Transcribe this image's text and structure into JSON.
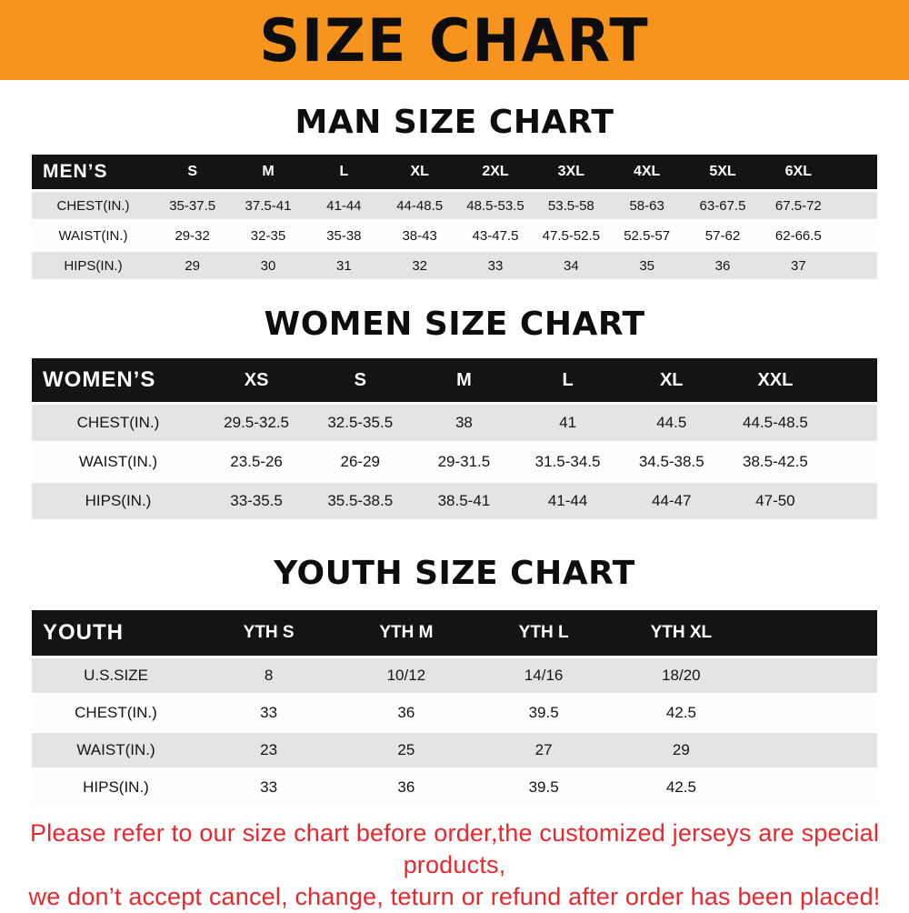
{
  "banner": {
    "title": "SIZE CHART"
  },
  "sections": {
    "men": {
      "heading": "MAN SIZE CHART",
      "table": {
        "header": [
          "MEN’S",
          "S",
          "M",
          "L",
          "XL",
          "2XL",
          "3XL",
          "4XL",
          "5XL",
          "6XL"
        ],
        "rows": [
          [
            "CHEST(IN.)",
            "35-37.5",
            "37.5-41",
            "41-44",
            "44-48.5",
            "48.5-53.5",
            "53.5-58",
            "58-63",
            "63-67.5",
            "67.5-72"
          ],
          [
            "WAIST(IN.)",
            "29-32",
            "32-35",
            "35-38",
            "38-43",
            "43-47.5",
            "47.5-52.5",
            "52.5-57",
            "57-62",
            "62-66.5"
          ],
          [
            "HIPS(IN.)",
            "29",
            "30",
            "31",
            "32",
            "33",
            "34",
            "35",
            "36",
            "37"
          ]
        ]
      }
    },
    "women": {
      "heading": "WOMEN SIZE CHART",
      "table": {
        "header": [
          "WOMEN’S",
          "XS",
          "S",
          "M",
          "L",
          "XL",
          "XXL"
        ],
        "rows": [
          [
            "CHEST(IN.)",
            "29.5-32.5",
            "32.5-35.5",
            "38",
            "41",
            "44.5",
            "44.5-48.5"
          ],
          [
            "WAIST(IN.)",
            "23.5-26",
            "26-29",
            "29-31.5",
            "31.5-34.5",
            "34.5-38.5",
            "38.5-42.5"
          ],
          [
            "HIPS(IN.)",
            "33-35.5",
            "35.5-38.5",
            "38.5-41",
            "41-44",
            "44-47",
            "47-50"
          ]
        ]
      }
    },
    "youth": {
      "heading": "YOUTH SIZE CHART",
      "table": {
        "header": [
          "YOUTH",
          "YTH S",
          "YTH M",
          "YTH L",
          "YTH XL"
        ],
        "rows": [
          [
            "U.S.SIZE",
            "8",
            "10/12",
            "14/16",
            "18/20"
          ],
          [
            "CHEST(IN.)",
            "33",
            "36",
            "39.5",
            "42.5"
          ],
          [
            "WAIST(IN.)",
            "23",
            "25",
            "27",
            "29"
          ],
          [
            "HIPS(IN.)",
            "33",
            "36",
            "39.5",
            "42.5"
          ]
        ]
      }
    }
  },
  "footer": {
    "line1": "Please refer to our size chart before order,the customized jerseys are special products,",
    "line2": "we don’t accept cancel, change, teturn or refund after order has been placed!"
  },
  "colors": {
    "banner_bg": "#F7941E",
    "header_bg": "#141414",
    "row_gray": "#E4E4E4",
    "footer_red": "#E9282E"
  }
}
